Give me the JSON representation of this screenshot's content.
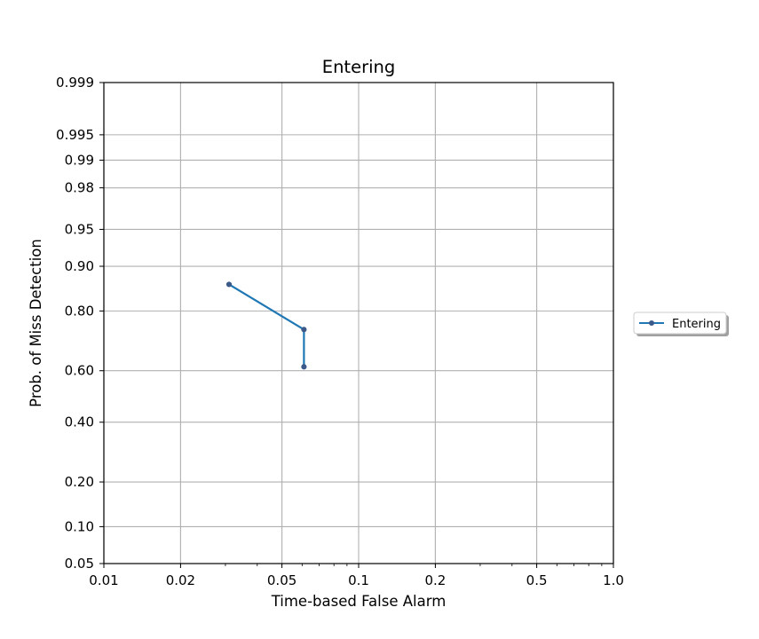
{
  "chart_data": {
    "type": "line",
    "title": "Entering",
    "xlabel": "Time-based False Alarm",
    "ylabel": "Prob. of Miss Detection",
    "x_scale": "log",
    "y_scale": "normal-deviate (probit)",
    "xlim": [
      0.01,
      1.0
    ],
    "ylim": [
      0.05,
      0.999
    ],
    "x_ticks": [
      {
        "value": 0.01,
        "label": "0.01"
      },
      {
        "value": 0.02,
        "label": "0.02"
      },
      {
        "value": 0.05,
        "label": "0.05"
      },
      {
        "value": 0.1,
        "label": "0.1"
      },
      {
        "value": 0.2,
        "label": "0.2"
      },
      {
        "value": 0.5,
        "label": "0.5"
      },
      {
        "value": 1.0,
        "label": "1.0"
      }
    ],
    "y_ticks": [
      {
        "value": 0.05,
        "label": "0.05"
      },
      {
        "value": 0.1,
        "label": "0.10"
      },
      {
        "value": 0.2,
        "label": "0.20"
      },
      {
        "value": 0.4,
        "label": "0.40"
      },
      {
        "value": 0.6,
        "label": "0.60"
      },
      {
        "value": 0.8,
        "label": "0.80"
      },
      {
        "value": 0.9,
        "label": "0.90"
      },
      {
        "value": 0.95,
        "label": "0.95"
      },
      {
        "value": 0.98,
        "label": "0.98"
      },
      {
        "value": 0.99,
        "label": "0.99"
      },
      {
        "value": 0.995,
        "label": "0.995"
      },
      {
        "value": 0.999,
        "label": "0.999"
      }
    ],
    "grid": true,
    "legend_position": "right",
    "series": [
      {
        "name": "Entering",
        "color": "#1f77b4",
        "marker_color": "#3b5a8a",
        "x": [
          0.031,
          0.061,
          0.061
        ],
        "y": [
          0.865,
          0.745,
          0.615
        ]
      }
    ]
  }
}
